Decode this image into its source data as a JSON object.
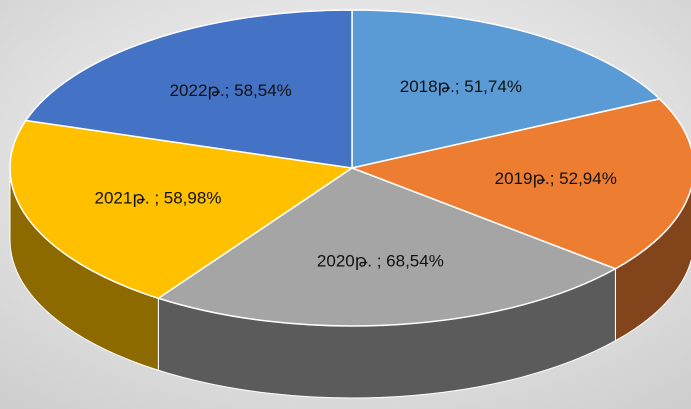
{
  "chart_data": {
    "type": "pie",
    "values": [
      51.74,
      52.94,
      68.54,
      58.98,
      58.54
    ],
    "value_labels": [
      "2018թ.; 51,74%",
      "2019թ.; 52,94%",
      "2020թ. ; 68,54%",
      "2021թ. ; 58,98%",
      "2022թ.; 58,54%"
    ],
    "colors": [
      "#5b9bd5",
      "#ed7d31",
      "#a5a5a5",
      "#ffc000",
      "#4472c4"
    ]
  }
}
